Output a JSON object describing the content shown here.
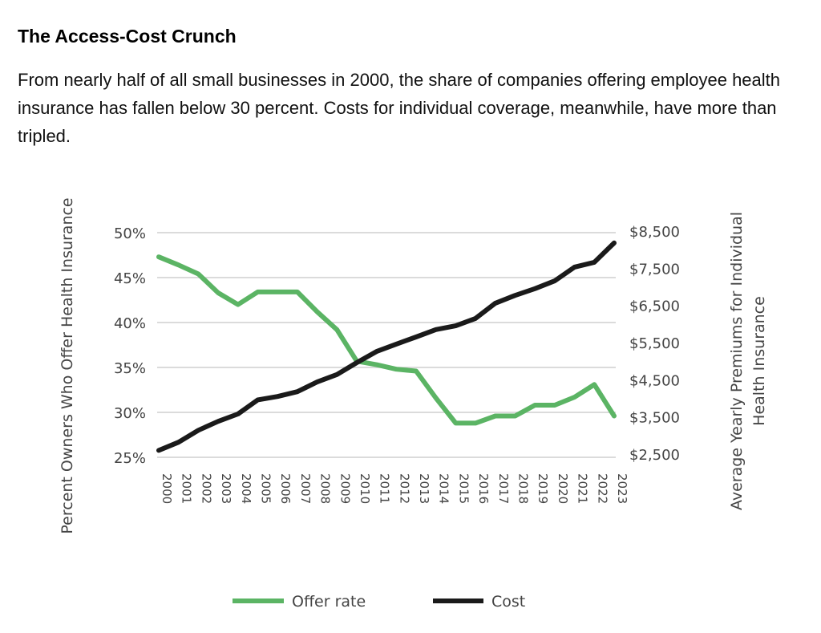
{
  "header": {
    "title": "The Access-Cost Crunch",
    "subtitle": "From nearly half of all small businesses in 2000, the share of companies offering employee health insurance has fallen below 30 percent. Costs for individual coverage, meanwhile, have more than tripled."
  },
  "chart_data": {
    "type": "line",
    "title": "The Access-Cost Crunch",
    "xlabel": "",
    "ylabel": "Percent Owners Who Offer Health Insurance",
    "y2label": "Average Yearly Premiums for Individual Health Insurance",
    "y2label_lines": [
      "Average Yearly Premiums for Individual",
      "Health Insurance"
    ],
    "x": [
      "2000",
      "2001",
      "2002",
      "2003",
      "2004",
      "2005",
      "2006",
      "2007",
      "2008",
      "2009",
      "2010",
      "2011",
      "2012",
      "2013",
      "2014",
      "2015",
      "2016",
      "2017",
      "2018",
      "2019",
      "2020",
      "2021",
      "2022",
      "2023"
    ],
    "ylim": [
      25,
      50
    ],
    "y2lim": [
      2500,
      8500
    ],
    "yticks": [
      50,
      45,
      40,
      35,
      30,
      25
    ],
    "ytick_labels": [
      "50%",
      "45%",
      "40%",
      "35%",
      "30%",
      "25%"
    ],
    "y2ticks": [
      8500,
      7500,
      6500,
      5500,
      4500,
      3500,
      2500
    ],
    "y2tick_labels": [
      "$8,500",
      "$7,500",
      "$6,500",
      "$5,500",
      "$4,500",
      "$3,500",
      "$2,500"
    ],
    "grid": true,
    "legend_position": "bottom-center",
    "series": [
      {
        "name": "Offer rate",
        "axis": "left",
        "color": "#5bb464",
        "values": [
          47.3,
          46.4,
          45.4,
          43.3,
          42.0,
          43.4,
          43.4,
          43.4,
          41.2,
          39.2,
          35.7,
          35.3,
          34.8,
          34.6,
          31.6,
          28.8,
          28.8,
          29.6,
          29.6,
          30.8,
          30.8,
          31.7,
          33.1,
          29.6
        ]
      },
      {
        "name": "Cost",
        "axis": "right",
        "color": "#1a1a1a",
        "values": [
          2600,
          2820,
          3140,
          3380,
          3580,
          3960,
          4050,
          4180,
          4440,
          4640,
          4960,
          5260,
          5460,
          5650,
          5850,
          5950,
          6150,
          6560,
          6770,
          6950,
          7160,
          7530,
          7660,
          8180
        ]
      }
    ]
  }
}
